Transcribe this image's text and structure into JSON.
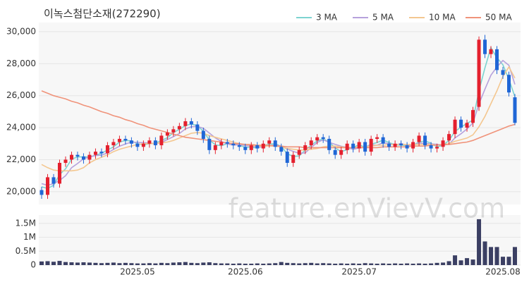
{
  "chart_data": {
    "type": "candlestick",
    "title": "이녹스첨단소재(272290)",
    "watermark": "feature.enVievV.com",
    "categories": [
      null,
      null,
      null,
      null,
      null,
      null,
      null,
      null,
      null,
      null,
      null,
      null,
      null,
      null,
      null,
      null,
      "2025.05",
      null,
      null,
      null,
      null,
      null,
      null,
      null,
      null,
      null,
      null,
      null,
      null,
      null,
      null,
      null,
      null,
      null,
      "2025.06",
      null,
      null,
      null,
      null,
      null,
      null,
      null,
      null,
      null,
      null,
      null,
      null,
      null,
      null,
      null,
      null,
      null,
      null,
      "2025.07",
      null,
      null,
      null,
      null,
      null,
      null,
      null,
      null,
      null,
      null,
      null,
      null,
      null,
      null,
      null,
      null,
      null,
      null,
      null,
      null,
      null,
      null,
      null,
      "2025.08",
      null,
      null
    ],
    "open": [
      20100,
      19800,
      20900,
      20500,
      21800,
      22000,
      22300,
      22200,
      22000,
      22300,
      22500,
      22400,
      22900,
      23100,
      23300,
      23200,
      23000,
      22800,
      23000,
      23200,
      22900,
      23500,
      23700,
      23900,
      24100,
      24400,
      24200,
      23800,
      23300,
      22600,
      22900,
      23100,
      23000,
      22900,
      22800,
      22600,
      22900,
      22700,
      23000,
      23200,
      22800,
      22500,
      21800,
      22300,
      22600,
      22900,
      23200,
      23400,
      23300,
      22600,
      22300,
      22600,
      23000,
      22700,
      23100,
      22500,
      23300,
      23400,
      23000,
      22800,
      23000,
      22900,
      22700,
      23100,
      23500,
      22900,
      22700,
      22800,
      23200,
      23600,
      24500,
      24000,
      24300,
      25300,
      29500,
      28600,
      28900,
      27600,
      27300,
      25900
    ],
    "high": [
      20300,
      21100,
      21100,
      22000,
      22200,
      22500,
      22500,
      22400,
      22500,
      22700,
      22700,
      23100,
      23300,
      23500,
      23500,
      23400,
      23200,
      23200,
      23400,
      23400,
      23700,
      23900,
      24100,
      24300,
      24600,
      24600,
      24400,
      24000,
      23500,
      23100,
      23300,
      23300,
      23200,
      23100,
      23000,
      23100,
      23100,
      23200,
      23400,
      23400,
      23000,
      22700,
      22500,
      22800,
      23100,
      23400,
      23600,
      23600,
      23500,
      22800,
      22800,
      23200,
      23200,
      23300,
      23300,
      23500,
      23600,
      23600,
      23200,
      23200,
      23200,
      23100,
      23300,
      23700,
      23700,
      23100,
      23000,
      23400,
      23800,
      24700,
      24700,
      24500,
      25300,
      29700,
      29800,
      29100,
      29100,
      27800,
      27500,
      26100
    ],
    "low": [
      19550,
      19550,
      20250,
      20250,
      21550,
      21750,
      21950,
      21750,
      21750,
      22050,
      22150,
      22150,
      22650,
      22850,
      22950,
      22750,
      22550,
      22550,
      22750,
      22650,
      22650,
      23250,
      23450,
      23650,
      23850,
      23950,
      23550,
      23050,
      22350,
      22350,
      22650,
      22750,
      22650,
      22550,
      22350,
      22350,
      22450,
      22450,
      22750,
      22550,
      22250,
      21550,
      21550,
      22050,
      22350,
      22650,
      22950,
      23050,
      22350,
      22050,
      22050,
      22350,
      22450,
      22450,
      22250,
      22250,
      23050,
      22750,
      22550,
      22550,
      22650,
      22450,
      22450,
      22850,
      22650,
      22450,
      22450,
      22550,
      22950,
      23350,
      23750,
      23750,
      24050,
      25050,
      28350,
      28350,
      27350,
      27050,
      25950,
      24150
    ],
    "close": [
      19800,
      20900,
      20500,
      21800,
      22000,
      22300,
      22200,
      22000,
      22300,
      22500,
      22400,
      22900,
      23100,
      23300,
      23200,
      23000,
      22800,
      23000,
      23200,
      22900,
      23500,
      23700,
      23900,
      24100,
      24400,
      24200,
      23800,
      23300,
      22600,
      22900,
      23100,
      23000,
      22900,
      22800,
      22600,
      22900,
      22700,
      23000,
      23200,
      22800,
      22500,
      21800,
      22300,
      22600,
      22900,
      23200,
      23400,
      23300,
      22600,
      22300,
      22600,
      23000,
      22700,
      23100,
      22500,
      23300,
      23400,
      23000,
      22800,
      23000,
      22900,
      22700,
      23100,
      23500,
      22900,
      22700,
      22800,
      23200,
      23600,
      24500,
      24000,
      24300,
      25100,
      29500,
      28600,
      28900,
      27600,
      27300,
      26200,
      24300
    ],
    "up_color": "#e4202e",
    "down_color": "#1f66d6",
    "series": [
      {
        "name": "3 MA",
        "color": "#7dd3d0",
        "values": [
          20300,
          20200,
          20400,
          21070,
          21430,
          22030,
          22170,
          22170,
          22170,
          22270,
          22400,
          22600,
          22800,
          23100,
          23200,
          23170,
          23000,
          22930,
          23000,
          23030,
          23200,
          23370,
          23700,
          23900,
          24130,
          24230,
          24130,
          23770,
          23230,
          22930,
          22870,
          23000,
          23000,
          22900,
          22770,
          22770,
          22730,
          22870,
          22970,
          23000,
          22830,
          22370,
          22200,
          22230,
          22600,
          22900,
          23170,
          23300,
          23100,
          22730,
          22500,
          22630,
          22770,
          22930,
          22770,
          22970,
          23070,
          23230,
          23070,
          22930,
          22900,
          22870,
          22900,
          23100,
          23170,
          23030,
          22800,
          22900,
          23200,
          23770,
          24030,
          24270,
          24470,
          26300,
          27730,
          29000,
          28370,
          27930,
          27030,
          25930
        ]
      },
      {
        "name": "5 MA",
        "color": "#b6a1dc",
        "values": [
          20500,
          20400,
          20500,
          20700,
          21000,
          21500,
          21760,
          22060,
          22160,
          22260,
          22280,
          22420,
          22640,
          22840,
          22980,
          23100,
          23080,
          23060,
          23040,
          22980,
          23080,
          23260,
          23440,
          23640,
          23920,
          24060,
          24080,
          23960,
          23660,
          23360,
          23140,
          22980,
          22900,
          22940,
          22880,
          22840,
          22780,
          22800,
          22880,
          22920,
          22840,
          22660,
          22520,
          22400,
          22420,
          22760,
          23080,
          23240,
          23080,
          22960,
          22840,
          22760,
          22640,
          22740,
          22780,
          22920,
          22900,
          23060,
          23000,
          22900,
          23020,
          22880,
          22900,
          23040,
          23020,
          22980,
          22960,
          22900,
          22970,
          23360,
          23620,
          23920,
          24300,
          25480,
          26400,
          27280,
          27800,
          28200,
          27900,
          26700
        ]
      },
      {
        "name": "10 MA",
        "color": "#f4c790",
        "values": [
          21700,
          21500,
          21350,
          21300,
          21300,
          21300,
          21350,
          21500,
          21800,
          22000,
          22150,
          22300,
          22500,
          22650,
          22750,
          22850,
          22950,
          23000,
          23000,
          23020,
          23050,
          23100,
          23200,
          23350,
          23500,
          23650,
          23700,
          23650,
          23500,
          23400,
          23300,
          23200,
          23100,
          23000,
          22950,
          22900,
          22850,
          22850,
          22850,
          22850,
          22800,
          22700,
          22650,
          22600,
          22600,
          22650,
          22700,
          22800,
          22850,
          22850,
          22800,
          22750,
          22750,
          22750,
          22800,
          22850,
          22900,
          22900,
          22950,
          22950,
          22950,
          22950,
          22950,
          22950,
          22950,
          22950,
          22900,
          22950,
          23000,
          23150,
          23250,
          23350,
          23550,
          24050,
          24700,
          25500,
          26300,
          27200,
          27800,
          27100
        ]
      },
      {
        "name": "50 MA",
        "color": "#f0937a",
        "values": [
          26300,
          26150,
          26000,
          25900,
          25800,
          25650,
          25550,
          25400,
          25300,
          25150,
          25000,
          24900,
          24750,
          24650,
          24500,
          24400,
          24250,
          24150,
          24000,
          23900,
          23800,
          23700,
          23600,
          23500,
          23400,
          23350,
          23300,
          23250,
          23200,
          23150,
          23100,
          23050,
          23000,
          23000,
          22950,
          22950,
          22900,
          22900,
          22900,
          22850,
          22850,
          22800,
          22800,
          22800,
          22750,
          22750,
          22750,
          22750,
          22750,
          22750,
          22750,
          22750,
          22750,
          22750,
          22750,
          22750,
          22750,
          22800,
          22800,
          22800,
          22800,
          22800,
          22850,
          22850,
          22850,
          22900,
          22900,
          22950,
          22950,
          23000,
          23050,
          23100,
          23200,
          23350,
          23500,
          23650,
          23800,
          23950,
          24100,
          24200
        ]
      }
    ],
    "ylim": [
      19200,
      30570
    ],
    "yticks": [
      {
        "value": 20000,
        "label": "20,000"
      },
      {
        "value": 22000,
        "label": "22,000"
      },
      {
        "value": 24000,
        "label": "24,000"
      },
      {
        "value": 26000,
        "label": "26,000"
      },
      {
        "value": 28000,
        "label": "28,000"
      },
      {
        "value": 30000,
        "label": "30,000"
      }
    ],
    "volume": [
      130000,
      140000,
      120000,
      150000,
      110000,
      100000,
      90000,
      100000,
      90000,
      80000,
      70000,
      80000,
      90000,
      70000,
      80000,
      70000,
      60000,
      60000,
      70000,
      60000,
      80000,
      70000,
      90000,
      100000,
      110000,
      80000,
      70000,
      90000,
      100000,
      70000,
      60000,
      60000,
      50000,
      60000,
      50000,
      50000,
      60000,
      50000,
      60000,
      70000,
      110000,
      80000,
      70000,
      60000,
      70000,
      80000,
      60000,
      70000,
      60000,
      50000,
      60000,
      50000,
      60000,
      50000,
      70000,
      60000,
      50000,
      60000,
      50000,
      60000,
      50000,
      60000,
      50000,
      60000,
      50000,
      60000,
      80000,
      90000,
      140000,
      350000,
      170000,
      250000,
      200000,
      1650000,
      850000,
      650000,
      650000,
      300000,
      300000,
      650000
    ],
    "volume_color": "#3b3f63",
    "volume_ylim": [
      0,
      1800000
    ],
    "volume_yticks": [
      0,
      {
        "value": 500000,
        "label": "0.5M"
      },
      {
        "value": 1000000,
        "label": "1M"
      },
      {
        "value": 1500000,
        "label": "1.5M"
      }
    ],
    "grid": true
  }
}
